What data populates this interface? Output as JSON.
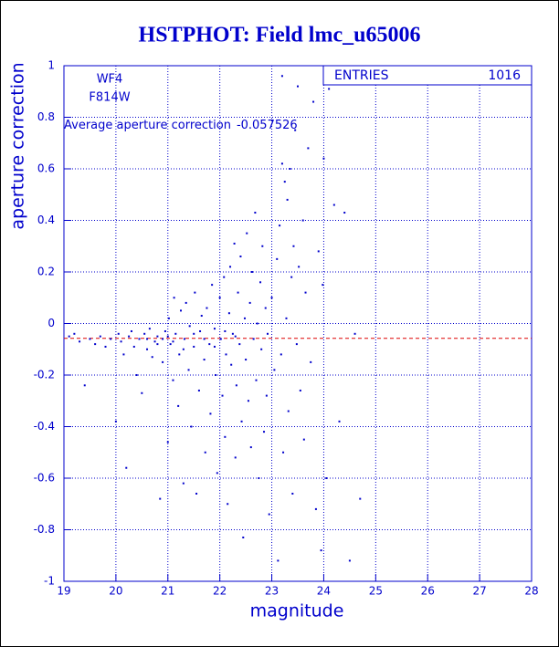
{
  "chart_data": {
    "type": "scatter",
    "title": "HSTPHOT: Field lmc_u65006",
    "x_label": "magnitude",
    "y_label": "aperture correction",
    "color": "#0000cc",
    "grid": true,
    "xlim": [
      19,
      28
    ],
    "ylim": [
      -1,
      1
    ],
    "xticks": [
      19,
      20,
      21,
      22,
      23,
      24,
      25,
      26,
      27,
      28
    ],
    "yticks": [
      -1,
      -0.8,
      -0.6,
      -0.4,
      -0.2,
      0,
      0.2,
      0.4,
      0.6,
      0.8,
      1
    ],
    "labels": [
      "WF4",
      "F814W"
    ],
    "stats": {
      "label": "ENTRIES",
      "value": 1016
    },
    "reference_line": {
      "label": "Average aperture correction",
      "value": -0.057526,
      "color": "#dd0000"
    },
    "x": [
      19.1,
      19.2,
      19.3,
      19.4,
      19.5,
      19.6,
      19.7,
      19.8,
      19.9,
      20.0,
      20.05,
      20.1,
      20.15,
      20.2,
      20.25,
      20.3,
      20.35,
      20.4,
      20.45,
      20.5,
      20.55,
      20.6,
      20.65,
      20.7,
      20.75,
      20.8,
      20.85,
      20.9,
      20.95,
      21.0,
      21.02,
      21.05,
      21.1,
      21.12,
      21.15,
      21.2,
      21.22,
      21.25,
      21.3,
      21.32,
      21.35,
      21.4,
      21.42,
      21.45,
      21.5,
      21.52,
      21.55,
      21.6,
      21.62,
      21.65,
      21.7,
      21.72,
      21.75,
      21.8,
      21.82,
      21.85,
      21.9,
      21.92,
      21.95,
      22.0,
      22.02,
      22.05,
      22.08,
      22.1,
      22.12,
      22.15,
      22.18,
      22.2,
      22.22,
      22.25,
      22.28,
      22.3,
      22.32,
      22.35,
      22.38,
      22.4,
      22.42,
      22.45,
      22.48,
      22.5,
      22.52,
      22.55,
      22.58,
      22.6,
      22.62,
      22.65,
      22.68,
      22.7,
      22.72,
      22.75,
      22.78,
      22.8,
      22.82,
      22.85,
      22.88,
      22.9,
      22.92,
      22.95,
      23.0,
      23.05,
      23.1,
      23.12,
      23.15,
      23.18,
      23.2,
      23.22,
      23.25,
      23.28,
      23.3,
      23.32,
      23.35,
      23.38,
      23.4,
      23.42,
      23.45,
      23.48,
      23.5,
      23.52,
      23.55,
      23.6,
      23.62,
      23.65,
      23.7,
      23.75,
      23.8,
      23.85,
      23.9,
      23.95,
      23.98,
      24.0,
      24.05,
      24.1,
      24.2,
      24.3,
      24.4,
      24.5,
      24.6,
      24.7,
      23.2,
      20.9,
      20.6,
      20.8,
      21.0,
      21.1,
      21.3,
      21.5,
      21.7,
      21.9,
      22.1,
      22.3
    ],
    "y": [
      -0.05,
      -0.04,
      -0.07,
      -0.24,
      -0.06,
      -0.08,
      -0.05,
      -0.09,
      -0.06,
      -0.38,
      -0.04,
      -0.07,
      -0.12,
      -0.56,
      -0.05,
      -0.03,
      -0.09,
      -0.2,
      -0.06,
      -0.27,
      -0.04,
      -0.1,
      -0.02,
      -0.13,
      -0.07,
      -0.05,
      -0.68,
      -0.15,
      -0.03,
      -0.46,
      0.02,
      -0.08,
      -0.22,
      0.1,
      -0.04,
      -0.32,
      -0.12,
      0.05,
      -0.62,
      -0.06,
      0.08,
      -0.18,
      -0.01,
      -0.4,
      -0.09,
      0.12,
      -0.66,
      -0.26,
      -0.03,
      0.03,
      -0.14,
      -0.5,
      0.06,
      -0.08,
      -0.35,
      0.15,
      -0.02,
      -0.2,
      -0.58,
      0.1,
      -0.06,
      -0.28,
      0.18,
      -0.44,
      -0.12,
      -0.7,
      0.04,
      0.22,
      -0.16,
      -0.04,
      0.31,
      -0.52,
      -0.24,
      0.12,
      -0.08,
      0.26,
      -0.38,
      -0.83,
      0.02,
      -0.14,
      0.35,
      -0.3,
      0.08,
      -0.48,
      0.2,
      -0.06,
      0.43,
      -0.22,
      0.0,
      -0.6,
      0.16,
      -0.1,
      0.3,
      -0.42,
      0.06,
      -0.28,
      -0.04,
      -0.74,
      0.1,
      -0.18,
      0.25,
      -0.92,
      0.38,
      -0.12,
      0.62,
      -0.5,
      0.55,
      0.02,
      0.48,
      -0.34,
      0.6,
      0.18,
      -0.66,
      0.3,
      0.75,
      -0.08,
      0.92,
      0.22,
      -0.26,
      0.4,
      -0.45,
      0.12,
      0.68,
      -0.15,
      0.86,
      -0.72,
      0.28,
      -0.88,
      0.15,
      0.64,
      -0.6,
      0.91,
      0.46,
      -0.38,
      0.43,
      -0.92,
      -0.04,
      -0.68,
      0.96,
      -0.06,
      -0.06,
      -0.08,
      -0.05,
      -0.07,
      -0.1,
      -0.04,
      -0.06,
      -0.09,
      -0.03,
      -0.05
    ]
  }
}
